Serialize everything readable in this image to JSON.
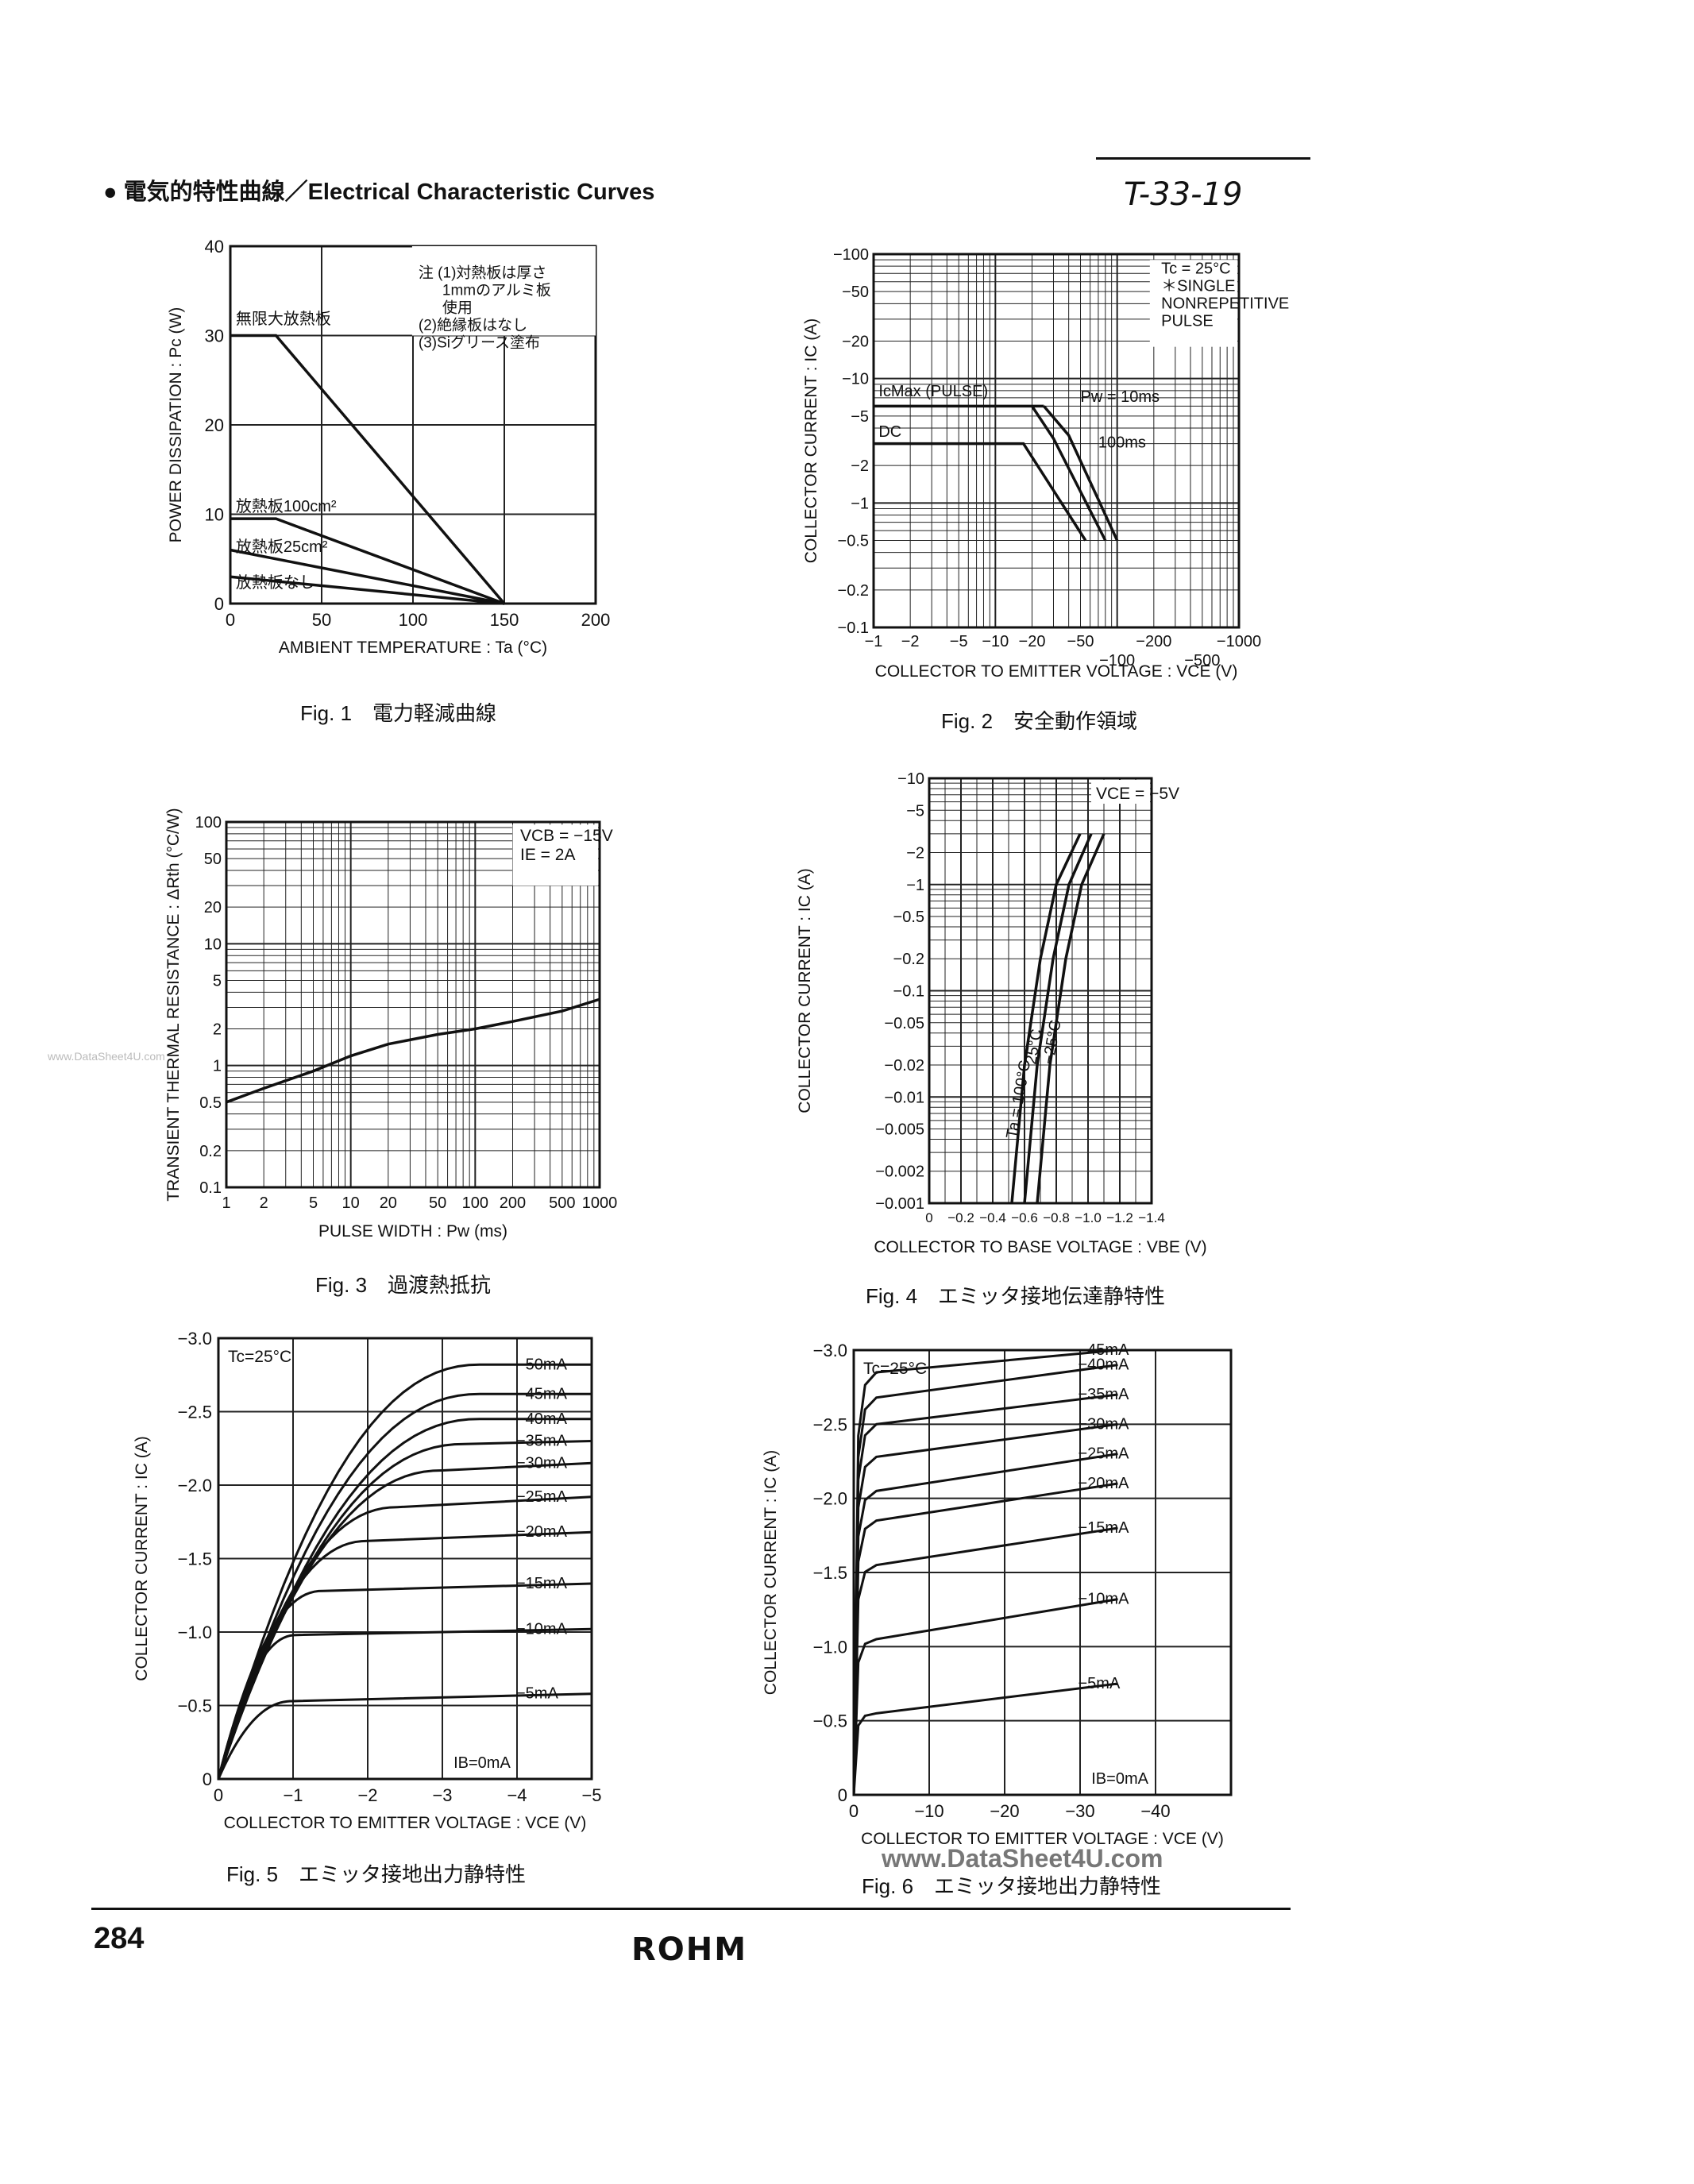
{
  "header": {
    "title": "● 電気的特性曲線／Electrical Characteristic Curves",
    "doc_code": "T-33-19"
  },
  "footer": {
    "page_number": "284",
    "brand": "ROHM",
    "watermark": "www.DataSheet4U.com",
    "side_watermark": "www.DataSheet4U.com"
  },
  "chart_data": [
    {
      "id": "fig1",
      "type": "line",
      "caption": "Fig. 1　電力軽減曲線",
      "xlabel": "AMBIENT TEMPERATURE : Ta (°C)",
      "ylabel": "POWER DISSIPATION : Pc (W)",
      "xlim": [
        0,
        200
      ],
      "ylim": [
        0,
        40
      ],
      "xticks": [
        0,
        50,
        100,
        150,
        200
      ],
      "yticks": [
        0,
        10,
        20,
        30,
        40
      ],
      "notes": [
        "注 (1)対熱板は厚さ",
        "1mmのアルミ板",
        "使用",
        "(2)絶縁板はなし",
        "(3)Siグリース塗布"
      ],
      "series": [
        {
          "name": "無限大放熱板",
          "points": [
            [
              0,
              30
            ],
            [
              25,
              30
            ],
            [
              150,
              0
            ]
          ]
        },
        {
          "name": "放熱板100cm²",
          "points": [
            [
              0,
              9.5
            ],
            [
              25,
              9.5
            ],
            [
              150,
              0
            ]
          ]
        },
        {
          "name": "放熱板25cm²",
          "points": [
            [
              0,
              6
            ],
            [
              150,
              0
            ]
          ]
        },
        {
          "name": "放熱板なし",
          "points": [
            [
              0,
              3
            ],
            [
              150,
              0
            ]
          ]
        }
      ]
    },
    {
      "id": "fig2",
      "type": "line",
      "caption": "Fig. 2　安全動作領域",
      "xlabel": "COLLECTOR TO EMITTER VOLTAGE : VCE (V)",
      "ylabel": "COLLECTOR CURRENT : IC (A)",
      "xscale": "log",
      "yscale": "log",
      "xlim": [
        1,
        1000
      ],
      "ylim": [
        0.1,
        100
      ],
      "xticks_upper": [
        "−1",
        "−2",
        "−5",
        "−10",
        "−20",
        "−50",
        "−200",
        "−1000"
      ],
      "xticks_lower": [
        "−100",
        "−500"
      ],
      "yticks": [
        "−0.1",
        "−0.2",
        "−0.5",
        "−1",
        "−2",
        "−5",
        "−10",
        "−20",
        "−50",
        "−100"
      ],
      "legend": [
        "Tc = 25°C",
        "＊SINGLE",
        "NONREPETITIVE",
        "PULSE"
      ],
      "annotations": [
        "IcMax (PULSE)",
        "DC",
        "Pw = 10ms",
        "100ms"
      ],
      "series": [
        {
          "name": "IcMax (PULSE)",
          "points": [
            [
              1,
              6
            ],
            [
              25,
              6
            ]
          ]
        },
        {
          "name": "DC",
          "points": [
            [
              1,
              3
            ],
            [
              17,
              3
            ],
            [
              55,
              0.5
            ]
          ]
        },
        {
          "name": "Pw = 10ms",
          "points": [
            [
              25,
              6
            ],
            [
              40,
              3.5
            ],
            [
              100,
              0.5
            ]
          ]
        },
        {
          "name": "100ms",
          "points": [
            [
              20,
              6
            ],
            [
              30,
              3.3
            ],
            [
              80,
              0.5
            ]
          ]
        }
      ]
    },
    {
      "id": "fig3",
      "type": "line",
      "caption": "Fig. 3　過渡熱抵抗",
      "xlabel": "PULSE WIDTH : Pw (ms)",
      "ylabel": "TRANSIENT THERMAL RESISTANCE : ΔRth (°C/W)",
      "xscale": "log",
      "yscale": "log",
      "xlim": [
        1,
        1000
      ],
      "ylim": [
        0.1,
        100
      ],
      "xticks": [
        "1",
        "2",
        "5",
        "10",
        "20",
        "50",
        "100",
        "200",
        "500",
        "1000"
      ],
      "yticks": [
        "0.1",
        "0.2",
        "0.5",
        "1",
        "2",
        "5",
        "10",
        "20",
        "50",
        "100"
      ],
      "legend": [
        "VCB = −15V",
        "IE = 2A"
      ],
      "series": [
        {
          "name": "",
          "points": [
            [
              1,
              0.5
            ],
            [
              2,
              0.65
            ],
            [
              5,
              0.9
            ],
            [
              10,
              1.2
            ],
            [
              20,
              1.5
            ],
            [
              50,
              1.8
            ],
            [
              100,
              2.0
            ],
            [
              200,
              2.3
            ],
            [
              500,
              2.8
            ],
            [
              1000,
              3.5
            ]
          ]
        }
      ]
    },
    {
      "id": "fig4",
      "type": "line",
      "caption": "Fig. 4　エミッタ接地伝達静特性",
      "xlabel": "COLLECTOR TO BASE VOLTAGE : VBE (V)",
      "ylabel": "COLLECTOR CURRENT : IC (A)",
      "yscale": "log",
      "xlim": [
        0,
        1.4
      ],
      "ylim": [
        0.001,
        10
      ],
      "xticks": [
        "0",
        "−0.2",
        "−0.4",
        "−0.6",
        "−0.8",
        "−1.0",
        "−1.2",
        "−1.4"
      ],
      "yticks": [
        "−0.001",
        "−0.002",
        "−0.005",
        "−0.01",
        "−0.02",
        "−0.05",
        "−0.1",
        "−0.2",
        "−0.5",
        "−1",
        "−2",
        "−5",
        "−10"
      ],
      "legend": [
        "VCE = −5V"
      ],
      "series": [
        {
          "name": "Ta = 100°C",
          "points": [
            [
              0.52,
              0.001
            ],
            [
              0.6,
              0.02
            ],
            [
              0.7,
              0.2
            ],
            [
              0.8,
              1.0
            ],
            [
              0.95,
              3.0
            ]
          ]
        },
        {
          "name": "25°C",
          "points": [
            [
              0.6,
              0.001
            ],
            [
              0.68,
              0.02
            ],
            [
              0.78,
              0.2
            ],
            [
              0.88,
              1.0
            ],
            [
              1.02,
              3.0
            ]
          ]
        },
        {
          "name": "−25°C",
          "points": [
            [
              0.68,
              0.001
            ],
            [
              0.76,
              0.02
            ],
            [
              0.86,
              0.2
            ],
            [
              0.96,
              1.0
            ],
            [
              1.1,
              3.0
            ]
          ]
        }
      ]
    },
    {
      "id": "fig5",
      "type": "line",
      "caption": "Fig. 5　エミッタ接地出力静特性",
      "xlabel": "COLLECTOR TO EMITTER VOLTAGE : VCE (V)",
      "ylabel": "COLLECTOR CURRENT : IC (A)",
      "xlim": [
        0,
        5
      ],
      "ylim": [
        0,
        3
      ],
      "xticks": [
        "0",
        "−1",
        "−2",
        "−3",
        "−4",
        "−5"
      ],
      "yticks": [
        "0",
        "−0.5",
        "−1.0",
        "−1.5",
        "−2.0",
        "−2.5",
        "−3.0"
      ],
      "legend": [
        "Tc=25°C"
      ],
      "ib_label": "IB=0mA",
      "series": [
        {
          "name": "−5mA",
          "knee": 1.0,
          "sat": 0.53,
          "end": 0.58
        },
        {
          "name": "−10mA",
          "knee": 1.05,
          "sat": 0.98,
          "end": 1.02
        },
        {
          "name": "−15mA",
          "knee": 1.4,
          "sat": 1.28,
          "end": 1.33
        },
        {
          "name": "−20mA",
          "knee": 2.0,
          "sat": 1.62,
          "end": 1.68
        },
        {
          "name": "−25mA",
          "knee": 2.4,
          "sat": 1.85,
          "end": 1.92
        },
        {
          "name": "−30mA",
          "knee": 3.0,
          "sat": 2.1,
          "end": 2.15
        },
        {
          "name": "−35mA",
          "knee": 3.3,
          "sat": 2.28,
          "end": 2.3
        },
        {
          "name": "−40mA",
          "knee": 3.5,
          "sat": 2.45,
          "end": 2.45
        },
        {
          "name": "−45mA",
          "knee": 3.5,
          "sat": 2.62,
          "end": 2.62
        },
        {
          "name": "−50mA",
          "knee": 3.5,
          "sat": 2.82,
          "end": 2.82
        }
      ]
    },
    {
      "id": "fig6",
      "type": "line",
      "caption": "Fig. 6　エミッタ接地出力静特性",
      "xlabel": "COLLECTOR TO EMITTER VOLTAGE : VCE (V)",
      "ylabel": "COLLECTOR CURRENT : IC (A)",
      "xlim": [
        0,
        50
      ],
      "ylim": [
        0,
        3
      ],
      "xticks": [
        "0",
        "−10",
        "−20",
        "−30",
        "−40"
      ],
      "xtick_values": [
        0,
        10,
        20,
        30,
        40
      ],
      "yticks": [
        "0",
        "−0.5",
        "−1.0",
        "−1.5",
        "−2.0",
        "−2.5",
        "−3.0"
      ],
      "legend": [
        "Tc=25°C"
      ],
      "ib_label": "IB=0mA",
      "series": [
        {
          "name": "−5mA",
          "sat": 0.55,
          "end": 0.75
        },
        {
          "name": "−10mA",
          "sat": 1.05,
          "end": 1.32
        },
        {
          "name": "−15mA",
          "sat": 1.55,
          "end": 1.8
        },
        {
          "name": "−20mA",
          "sat": 1.85,
          "end": 2.1
        },
        {
          "name": "−25mA",
          "sat": 2.05,
          "end": 2.3
        },
        {
          "name": "−30mA",
          "sat": 2.28,
          "end": 2.5
        },
        {
          "name": "−35mA",
          "sat": 2.5,
          "end": 2.7
        },
        {
          "name": "−40mA",
          "sat": 2.68,
          "end": 2.9
        },
        {
          "name": "−45mA",
          "sat": 2.85,
          "end": 3.0
        }
      ]
    }
  ]
}
